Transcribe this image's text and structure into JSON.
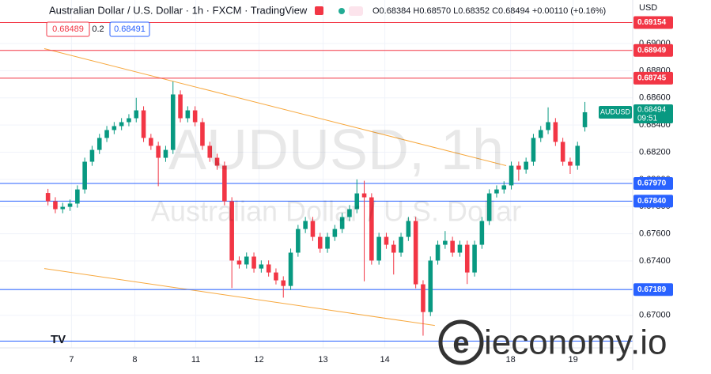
{
  "chart_data": {
    "type": "candlestick",
    "title": "Australian Dollar / U.S. Dollar · 1h · FXCM · TradingView",
    "ohlc_text": "O0.68384 H0.68570 L0.68352 C0.68494 +0.00110 (+0.16%)",
    "bid": "0.68489",
    "spread": "0.2",
    "ask": "0.68491",
    "currency": "USD",
    "countdown": "09:51",
    "last_price": "0.68494",
    "watermark": "AUDUSD, 1h",
    "watermark_subtitle": "Australian Dollar / U.S. Dollar",
    "brand": "ieconomy.io",
    "xlim": [
      -0.5,
      79.5
    ],
    "ylim": [
      0.6676,
      0.6932
    ],
    "xticks": [
      {
        "value": 3.2,
        "label": "7"
      },
      {
        "value": 11.8,
        "label": "8"
      },
      {
        "value": 20.1,
        "label": "11"
      },
      {
        "value": 28.7,
        "label": "12"
      },
      {
        "value": 37.4,
        "label": "13"
      },
      {
        "value": 45.8,
        "label": "14"
      },
      {
        "value": 62.9,
        "label": "18"
      },
      {
        "value": 71.4,
        "label": "19"
      }
    ],
    "yticks": [
      {
        "value": 0.67,
        "label": "0.67000"
      },
      {
        "value": 0.672,
        "label": "0.67200"
      },
      {
        "value": 0.674,
        "label": "0.67400"
      },
      {
        "value": 0.676,
        "label": "0.67600"
      },
      {
        "value": 0.678,
        "label": "0.67800"
      },
      {
        "value": 0.68,
        "label": "0.68000"
      },
      {
        "value": 0.682,
        "label": "0.68200"
      },
      {
        "value": 0.684,
        "label": "0.68400"
      },
      {
        "value": 0.686,
        "label": "0.68600"
      },
      {
        "value": 0.688,
        "label": "0.68800"
      },
      {
        "value": 0.69,
        "label": "0.69000"
      }
    ],
    "grid": true,
    "series": [
      {
        "name": "AUDUSD",
        "up_color": "#089981",
        "down_color": "#f23645",
        "x": [
          0,
          1,
          2,
          3,
          4,
          5,
          6,
          7,
          8,
          9,
          10,
          11,
          12,
          13,
          14,
          15,
          16,
          17,
          18,
          19,
          20,
          21,
          22,
          23,
          24,
          25,
          26,
          27,
          28,
          29,
          30,
          31,
          32,
          33,
          34,
          35,
          36,
          37,
          38,
          39,
          40,
          41,
          42,
          43,
          44,
          45,
          46,
          47,
          48,
          49,
          50,
          51,
          52,
          53,
          54,
          55,
          56,
          57,
          58,
          59,
          60,
          61,
          62,
          63,
          64,
          65,
          66,
          67,
          68,
          69,
          70,
          71,
          72,
          73
        ],
        "open": [
          0.679,
          0.67839,
          0.67781,
          0.67798,
          0.67822,
          0.67926,
          0.6813,
          0.68217,
          0.68305,
          0.68363,
          0.68392,
          0.68421,
          0.6845,
          0.68508,
          0.68305,
          0.68247,
          0.68159,
          0.68217,
          0.68625,
          0.6845,
          0.68508,
          0.68421,
          0.68247,
          0.68159,
          0.68101,
          0.67839,
          0.67403,
          0.67374,
          0.67432,
          0.67344,
          0.67374,
          0.67315,
          0.67257,
          0.67216,
          0.67461,
          0.67635,
          0.67694,
          0.67577,
          0.6749,
          0.67577,
          0.67635,
          0.67723,
          0.67781,
          0.67897,
          0.67868,
          0.67403,
          0.67577,
          0.67519,
          0.67461,
          0.67577,
          0.67694,
          0.67228,
          0.67024,
          0.67403,
          0.67519,
          0.67548,
          0.67461,
          0.67519,
          0.67315,
          0.67519,
          0.67694,
          0.67897,
          0.67926,
          0.67956,
          0.68101,
          0.68072,
          0.6813,
          0.68305,
          0.68363,
          0.68421,
          0.68276,
          0.6813,
          0.68101,
          0.68384
        ],
        "high": [
          0.6793,
          0.67869,
          0.67828,
          0.67852,
          0.67956,
          0.6816,
          0.68247,
          0.68335,
          0.68393,
          0.68422,
          0.68451,
          0.6848,
          0.686,
          0.68538,
          0.68335,
          0.68277,
          0.68247,
          0.6872,
          0.68655,
          0.68538,
          0.68538,
          0.68451,
          0.68277,
          0.68189,
          0.68131,
          0.67869,
          0.67433,
          0.67462,
          0.67462,
          0.67404,
          0.67404,
          0.67345,
          0.67287,
          0.67491,
          0.67665,
          0.67724,
          0.67724,
          0.67607,
          0.67607,
          0.67665,
          0.67753,
          0.67811,
          0.68,
          0.6799,
          0.67898,
          0.67607,
          0.67607,
          0.67549,
          0.67607,
          0.67724,
          0.67724,
          0.67258,
          0.67433,
          0.67549,
          0.6762,
          0.67578,
          0.67549,
          0.67549,
          0.67549,
          0.67724,
          0.67927,
          0.67956,
          0.67986,
          0.68131,
          0.68131,
          0.6816,
          0.68335,
          0.68393,
          0.6853,
          0.68451,
          0.68306,
          0.6816,
          0.68277,
          0.6857
        ],
        "low": [
          0.67809,
          0.67751,
          0.67751,
          0.67768,
          0.67792,
          0.67896,
          0.681,
          0.68187,
          0.68275,
          0.68333,
          0.68362,
          0.68391,
          0.6842,
          0.68275,
          0.68217,
          0.6795,
          0.68129,
          0.68187,
          0.6842,
          0.6842,
          0.68391,
          0.68217,
          0.68129,
          0.68071,
          0.67809,
          0.672,
          0.67344,
          0.67344,
          0.67314,
          0.67314,
          0.67285,
          0.67227,
          0.6713,
          0.67186,
          0.67431,
          0.67605,
          0.67547,
          0.6746,
          0.6746,
          0.67547,
          0.67605,
          0.67693,
          0.67751,
          0.6725,
          0.67373,
          0.67373,
          0.67489,
          0.673,
          0.67431,
          0.67547,
          0.67198,
          0.6685,
          0.66994,
          0.67373,
          0.67489,
          0.67431,
          0.67431,
          0.6723,
          0.67285,
          0.67489,
          0.67664,
          0.67867,
          0.67896,
          0.67926,
          0.6799,
          0.68042,
          0.681,
          0.68275,
          0.68333,
          0.68246,
          0.681,
          0.6804,
          0.68071,
          0.68352
        ],
        "close": [
          0.67839,
          0.67781,
          0.67798,
          0.67822,
          0.67926,
          0.6813,
          0.68217,
          0.68305,
          0.68363,
          0.68392,
          0.68421,
          0.6845,
          0.68508,
          0.68305,
          0.68247,
          0.68159,
          0.68217,
          0.68625,
          0.6845,
          0.68508,
          0.68421,
          0.68247,
          0.68159,
          0.68101,
          0.67839,
          0.67403,
          0.67374,
          0.67432,
          0.67344,
          0.67374,
          0.67315,
          0.67257,
          0.67216,
          0.67461,
          0.67635,
          0.67694,
          0.67577,
          0.6749,
          0.67577,
          0.67635,
          0.67723,
          0.67781,
          0.67897,
          0.67868,
          0.67403,
          0.67577,
          0.67519,
          0.67461,
          0.67577,
          0.67694,
          0.67228,
          0.67024,
          0.67403,
          0.67519,
          0.67548,
          0.67461,
          0.67519,
          0.67315,
          0.67519,
          0.67694,
          0.67897,
          0.67926,
          0.67956,
          0.68101,
          0.68072,
          0.6813,
          0.68305,
          0.68363,
          0.68421,
          0.68276,
          0.6813,
          0.68101,
          0.68247,
          0.68494
        ]
      }
    ],
    "levels": [
      {
        "value": 0.69154,
        "label": "0.69154",
        "color": "#f23645"
      },
      {
        "value": 0.68949,
        "label": "0.68949",
        "color": "#f23645"
      },
      {
        "value": 0.68745,
        "label": "0.68745",
        "color": "#f23645"
      },
      {
        "value": 0.6797,
        "label": "0.67970",
        "color": "#2962ff"
      },
      {
        "value": 0.6784,
        "label": "0.67840",
        "color": "#2962ff"
      },
      {
        "value": 0.67189,
        "label": "0.67189",
        "color": "#2962ff"
      },
      {
        "value": 0.6681,
        "color": "#2962ff"
      }
    ],
    "trendlines": [
      {
        "x": [
          -0.5,
          62.3
        ],
        "y": [
          0.68962,
          0.68101
        ],
        "color": "#f7a83e"
      },
      {
        "x": [
          -0.5,
          52.6
        ],
        "y": [
          0.67344,
          0.66925
        ],
        "color": "#f7a83e"
      }
    ]
  }
}
